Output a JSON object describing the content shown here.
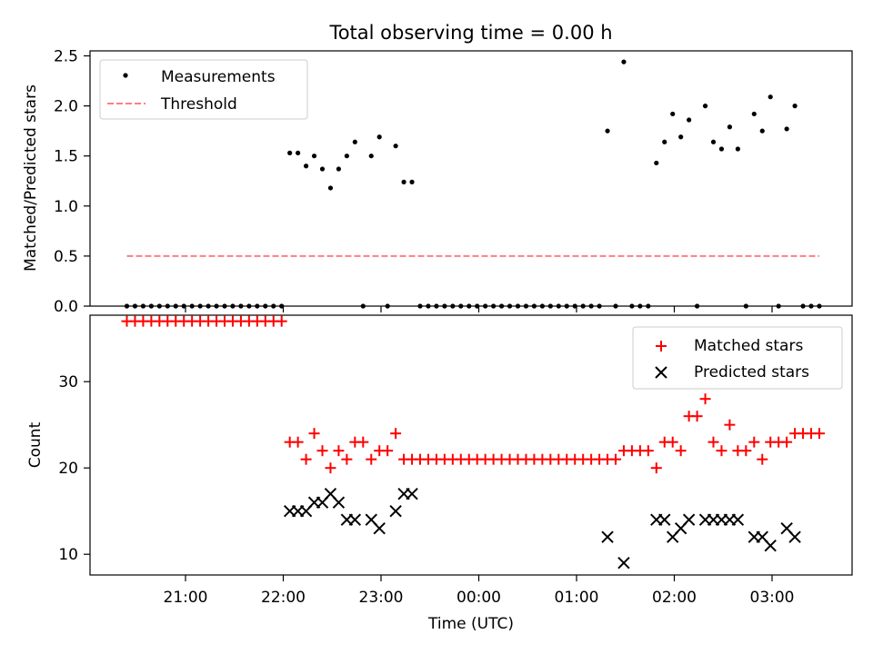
{
  "figure": {
    "title": "Total observing time = 0.00 h"
  },
  "chart_data": [
    {
      "type": "scatter",
      "ylabel": "Matched/Predicted stars",
      "ylim": [
        0,
        2.55
      ],
      "yticks": [
        0.0,
        0.5,
        1.0,
        1.5,
        2.0,
        2.5
      ],
      "ytick_labels": [
        "0.0",
        "0.5",
        "1.0",
        "1.5",
        "2.0",
        "2.5"
      ],
      "legend_position": "top-left",
      "series": [
        {
          "name": "Measurements",
          "kind": "points",
          "color": "#000000",
          "points": [
            {
              "t": "20:24",
              "v": 0
            },
            {
              "t": "20:29",
              "v": 0
            },
            {
              "t": "20:34",
              "v": 0
            },
            {
              "t": "20:39",
              "v": 0
            },
            {
              "t": "20:44",
              "v": 0
            },
            {
              "t": "20:49",
              "v": 0
            },
            {
              "t": "20:54",
              "v": 0
            },
            {
              "t": "20:59",
              "v": 0
            },
            {
              "t": "21:04",
              "v": 0
            },
            {
              "t": "21:09",
              "v": 0
            },
            {
              "t": "21:14",
              "v": 0
            },
            {
              "t": "21:19",
              "v": 0
            },
            {
              "t": "21:24",
              "v": 0
            },
            {
              "t": "21:29",
              "v": 0
            },
            {
              "t": "21:34",
              "v": 0
            },
            {
              "t": "21:39",
              "v": 0
            },
            {
              "t": "21:44",
              "v": 0
            },
            {
              "t": "21:49",
              "v": 0
            },
            {
              "t": "21:54",
              "v": 0
            },
            {
              "t": "21:59",
              "v": 0
            },
            {
              "t": "22:04",
              "v": 1.53
            },
            {
              "t": "22:09",
              "v": 1.53
            },
            {
              "t": "22:14",
              "v": 1.4
            },
            {
              "t": "22:19",
              "v": 1.5
            },
            {
              "t": "22:24",
              "v": 1.37
            },
            {
              "t": "22:29",
              "v": 1.18
            },
            {
              "t": "22:34",
              "v": 1.37
            },
            {
              "t": "22:39",
              "v": 1.5
            },
            {
              "t": "22:44",
              "v": 1.64
            },
            {
              "t": "22:49",
              "v": 0
            },
            {
              "t": "22:54",
              "v": 1.5
            },
            {
              "t": "22:59",
              "v": 1.69
            },
            {
              "t": "23:04",
              "v": 0
            },
            {
              "t": "23:09",
              "v": 1.6
            },
            {
              "t": "23:14",
              "v": 1.24
            },
            {
              "t": "23:19",
              "v": 1.24
            },
            {
              "t": "23:24",
              "v": 0
            },
            {
              "t": "23:29",
              "v": 0
            },
            {
              "t": "23:34",
              "v": 0
            },
            {
              "t": "23:39",
              "v": 0
            },
            {
              "t": "23:44",
              "v": 0
            },
            {
              "t": "23:49",
              "v": 0
            },
            {
              "t": "23:54",
              "v": 0
            },
            {
              "t": "23:59",
              "v": 0
            },
            {
              "t": "00:04",
              "v": 0
            },
            {
              "t": "00:09",
              "v": 0
            },
            {
              "t": "00:14",
              "v": 0
            },
            {
              "t": "00:19",
              "v": 0
            },
            {
              "t": "00:24",
              "v": 0
            },
            {
              "t": "00:29",
              "v": 0
            },
            {
              "t": "00:34",
              "v": 0
            },
            {
              "t": "00:39",
              "v": 0
            },
            {
              "t": "00:44",
              "v": 0
            },
            {
              "t": "00:49",
              "v": 0
            },
            {
              "t": "00:54",
              "v": 0
            },
            {
              "t": "00:59",
              "v": 0
            },
            {
              "t": "01:04",
              "v": 0
            },
            {
              "t": "01:09",
              "v": 0
            },
            {
              "t": "01:14",
              "v": 0
            },
            {
              "t": "01:19",
              "v": 1.75
            },
            {
              "t": "01:24",
              "v": 0
            },
            {
              "t": "01:29",
              "v": 2.44
            },
            {
              "t": "01:34",
              "v": 0
            },
            {
              "t": "01:39",
              "v": 0
            },
            {
              "t": "01:44",
              "v": 0
            },
            {
              "t": "01:49",
              "v": 1.43
            },
            {
              "t": "01:54",
              "v": 1.64
            },
            {
              "t": "01:59",
              "v": 1.92
            },
            {
              "t": "02:04",
              "v": 1.69
            },
            {
              "t": "02:09",
              "v": 1.86
            },
            {
              "t": "02:14",
              "v": 0
            },
            {
              "t": "02:19",
              "v": 2.0
            },
            {
              "t": "02:24",
              "v": 1.64
            },
            {
              "t": "02:29",
              "v": 1.57
            },
            {
              "t": "02:34",
              "v": 1.79
            },
            {
              "t": "02:39",
              "v": 1.57
            },
            {
              "t": "02:44",
              "v": 0
            },
            {
              "t": "02:49",
              "v": 1.92
            },
            {
              "t": "02:54",
              "v": 1.75
            },
            {
              "t": "02:59",
              "v": 2.09
            },
            {
              "t": "03:04",
              "v": 0
            },
            {
              "t": "03:09",
              "v": 1.77
            },
            {
              "t": "03:14",
              "v": 2.0
            },
            {
              "t": "03:19",
              "v": 0
            },
            {
              "t": "03:24",
              "v": 0
            },
            {
              "t": "03:29",
              "v": 0
            }
          ]
        },
        {
          "name": "Threshold",
          "kind": "dashed-line",
          "color": "#ff7f7f",
          "points": [
            {
              "t": "20:24",
              "v": 0.5
            },
            {
              "t": "03:29",
              "v": 0.5
            }
          ]
        }
      ]
    },
    {
      "type": "scatter",
      "xlabel": "Time (UTC)",
      "ylabel": "Count",
      "ylim": [
        7.6,
        37.7
      ],
      "yticks": [
        10,
        20,
        30
      ],
      "ytick_labels": [
        "10",
        "20",
        "30"
      ],
      "x_ticks": [
        "21:00",
        "22:00",
        "23:00",
        "00:00",
        "01:00",
        "02:00",
        "03:00"
      ],
      "legend_position": "top-right",
      "series": [
        {
          "name": "Matched stars",
          "marker": "plus",
          "color": "#ff0000",
          "points": [
            {
              "t": "20:24",
              "v": 37
            },
            {
              "t": "20:29",
              "v": 37
            },
            {
              "t": "20:34",
              "v": 37
            },
            {
              "t": "20:39",
              "v": 37
            },
            {
              "t": "20:44",
              "v": 37
            },
            {
              "t": "20:49",
              "v": 37
            },
            {
              "t": "20:54",
              "v": 37
            },
            {
              "t": "20:59",
              "v": 37
            },
            {
              "t": "21:04",
              "v": 37
            },
            {
              "t": "21:09",
              "v": 37
            },
            {
              "t": "21:14",
              "v": 37
            },
            {
              "t": "21:19",
              "v": 37
            },
            {
              "t": "21:24",
              "v": 37
            },
            {
              "t": "21:29",
              "v": 37
            },
            {
              "t": "21:34",
              "v": 37
            },
            {
              "t": "21:39",
              "v": 37
            },
            {
              "t": "21:44",
              "v": 37
            },
            {
              "t": "21:49",
              "v": 37
            },
            {
              "t": "21:54",
              "v": 37
            },
            {
              "t": "21:59",
              "v": 37
            },
            {
              "t": "22:04",
              "v": 23
            },
            {
              "t": "22:09",
              "v": 23
            },
            {
              "t": "22:14",
              "v": 21
            },
            {
              "t": "22:19",
              "v": 24
            },
            {
              "t": "22:24",
              "v": 22
            },
            {
              "t": "22:29",
              "v": 20
            },
            {
              "t": "22:34",
              "v": 22
            },
            {
              "t": "22:39",
              "v": 21
            },
            {
              "t": "22:44",
              "v": 23
            },
            {
              "t": "22:49",
              "v": 23
            },
            {
              "t": "22:54",
              "v": 21
            },
            {
              "t": "22:59",
              "v": 22
            },
            {
              "t": "23:04",
              "v": 22
            },
            {
              "t": "23:09",
              "v": 24
            },
            {
              "t": "23:14",
              "v": 21
            },
            {
              "t": "23:19",
              "v": 21
            },
            {
              "t": "23:24",
              "v": 21
            },
            {
              "t": "23:29",
              "v": 21
            },
            {
              "t": "23:34",
              "v": 21
            },
            {
              "t": "23:39",
              "v": 21
            },
            {
              "t": "23:44",
              "v": 21
            },
            {
              "t": "23:49",
              "v": 21
            },
            {
              "t": "23:54",
              "v": 21
            },
            {
              "t": "23:59",
              "v": 21
            },
            {
              "t": "00:04",
              "v": 21
            },
            {
              "t": "00:09",
              "v": 21
            },
            {
              "t": "00:14",
              "v": 21
            },
            {
              "t": "00:19",
              "v": 21
            },
            {
              "t": "00:24",
              "v": 21
            },
            {
              "t": "00:29",
              "v": 21
            },
            {
              "t": "00:34",
              "v": 21
            },
            {
              "t": "00:39",
              "v": 21
            },
            {
              "t": "00:44",
              "v": 21
            },
            {
              "t": "00:49",
              "v": 21
            },
            {
              "t": "00:54",
              "v": 21
            },
            {
              "t": "00:59",
              "v": 21
            },
            {
              "t": "01:04",
              "v": 21
            },
            {
              "t": "01:09",
              "v": 21
            },
            {
              "t": "01:14",
              "v": 21
            },
            {
              "t": "01:19",
              "v": 21
            },
            {
              "t": "01:24",
              "v": 21
            },
            {
              "t": "01:29",
              "v": 22
            },
            {
              "t": "01:34",
              "v": 22
            },
            {
              "t": "01:39",
              "v": 22
            },
            {
              "t": "01:44",
              "v": 22
            },
            {
              "t": "01:49",
              "v": 20
            },
            {
              "t": "01:54",
              "v": 23
            },
            {
              "t": "01:59",
              "v": 23
            },
            {
              "t": "02:04",
              "v": 22
            },
            {
              "t": "02:09",
              "v": 26
            },
            {
              "t": "02:14",
              "v": 26
            },
            {
              "t": "02:19",
              "v": 28
            },
            {
              "t": "02:24",
              "v": 23
            },
            {
              "t": "02:29",
              "v": 22
            },
            {
              "t": "02:34",
              "v": 25
            },
            {
              "t": "02:39",
              "v": 22
            },
            {
              "t": "02:44",
              "v": 22
            },
            {
              "t": "02:49",
              "v": 23
            },
            {
              "t": "02:54",
              "v": 21
            },
            {
              "t": "02:59",
              "v": 23
            },
            {
              "t": "03:04",
              "v": 23
            },
            {
              "t": "03:09",
              "v": 23
            },
            {
              "t": "03:14",
              "v": 24
            },
            {
              "t": "03:19",
              "v": 24
            },
            {
              "t": "03:24",
              "v": 24
            },
            {
              "t": "03:29",
              "v": 24
            }
          ]
        },
        {
          "name": "Predicted stars",
          "marker": "x",
          "color": "#000000",
          "points": [
            {
              "t": "22:04",
              "v": 15
            },
            {
              "t": "22:09",
              "v": 15
            },
            {
              "t": "22:14",
              "v": 15
            },
            {
              "t": "22:19",
              "v": 16
            },
            {
              "t": "22:24",
              "v": 16
            },
            {
              "t": "22:29",
              "v": 17
            },
            {
              "t": "22:34",
              "v": 16
            },
            {
              "t": "22:39",
              "v": 14
            },
            {
              "t": "22:44",
              "v": 14
            },
            {
              "t": "22:54",
              "v": 14
            },
            {
              "t": "22:59",
              "v": 13
            },
            {
              "t": "23:09",
              "v": 15
            },
            {
              "t": "23:14",
              "v": 17
            },
            {
              "t": "23:19",
              "v": 17
            },
            {
              "t": "01:19",
              "v": 12
            },
            {
              "t": "01:29",
              "v": 9
            },
            {
              "t": "01:49",
              "v": 14
            },
            {
              "t": "01:54",
              "v": 14
            },
            {
              "t": "01:59",
              "v": 12
            },
            {
              "t": "02:04",
              "v": 13
            },
            {
              "t": "02:09",
              "v": 14
            },
            {
              "t": "02:19",
              "v": 14
            },
            {
              "t": "02:24",
              "v": 14
            },
            {
              "t": "02:29",
              "v": 14
            },
            {
              "t": "02:34",
              "v": 14
            },
            {
              "t": "02:39",
              "v": 14
            },
            {
              "t": "02:49",
              "v": 12
            },
            {
              "t": "02:54",
              "v": 12
            },
            {
              "t": "02:59",
              "v": 11
            },
            {
              "t": "03:09",
              "v": 13
            },
            {
              "t": "03:14",
              "v": 12
            }
          ]
        }
      ]
    }
  ]
}
